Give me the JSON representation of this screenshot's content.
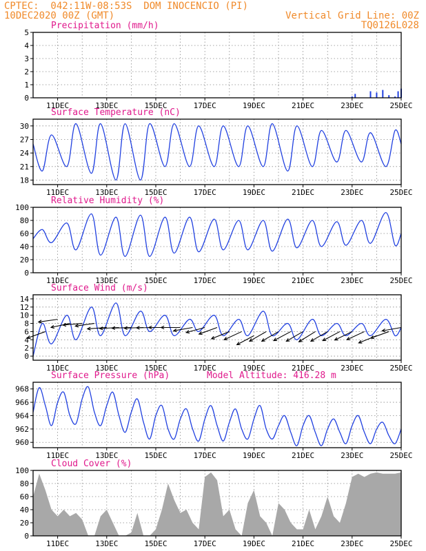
{
  "header": {
    "line1": "CPTEC:  042:11W-08:53S  DOM INOCENCIO (PI)",
    "line2": "10DEC2020 00Z (GMT)",
    "grid_note": "Vertical Grid Line: 00Z",
    "code": "TQ0126L028"
  },
  "colors": {
    "header": "#f08a2a",
    "panel_title": "#e0198c",
    "series": "#2040e0",
    "cloud_fill": "#a8a8a8",
    "grid": "#888888"
  },
  "x_axis": {
    "start": "10DEC2020 00Z",
    "end": "25DEC2020 00Z",
    "range_days": [
      10,
      25
    ],
    "tick_labels": [
      "11DEC",
      "13DEC",
      "15DEC",
      "17DEC",
      "19DEC",
      "21DEC",
      "23DEC",
      "25DEC"
    ],
    "tick_days": [
      11,
      13,
      15,
      17,
      19,
      21,
      23,
      25
    ]
  },
  "chart_data": [
    {
      "id": "precip",
      "type": "bar",
      "title": "Precipitation (mm/h)",
      "ylim": [
        0,
        5
      ],
      "yticks": [
        0,
        1,
        2,
        3,
        4,
        5
      ],
      "grid": true,
      "series": [
        {
          "x": [
            "10DEC 00Z",
            "11DEC 00Z",
            "12DEC 00Z",
            "13DEC 00Z",
            "14DEC 00Z",
            "15DEC 00Z",
            "16DEC 00Z",
            "17DEC 00Z",
            "18DEC 00Z",
            "19DEC 00Z",
            "20DEC 00Z",
            "21DEC 00Z",
            "22DEC 00Z",
            "23DEC 00Z",
            "23DEC 03Z",
            "23DEC 18Z",
            "24DEC 00Z",
            "24DEC 06Z",
            "24DEC 12Z",
            "24DEC 18Z",
            "24DEC 21Z",
            "25DEC 00Z"
          ],
          "values": [
            0.02,
            0.02,
            0.02,
            0.02,
            0.02,
            0.03,
            0.02,
            0.02,
            0.02,
            0.02,
            0.02,
            0.02,
            0.03,
            0.1,
            0.3,
            0.5,
            0.4,
            0.6,
            0.2,
            0.1,
            0.5,
            0.7
          ]
        }
      ]
    },
    {
      "id": "temp",
      "type": "line",
      "title": "Surface Temperature (nC)",
      "ylim": [
        17,
        31.5
      ],
      "yticks": [
        18,
        21,
        24,
        27,
        30
      ],
      "grid": true,
      "series": [
        {
          "x": [
            "10DEC 00Z",
            "10DEC 09Z",
            "10DEC 18Z",
            "11DEC 09Z",
            "11DEC 18Z",
            "12DEC 09Z",
            "12DEC 18Z",
            "13DEC 09Z",
            "13DEC 18Z",
            "14DEC 09Z",
            "14DEC 18Z",
            "15DEC 09Z",
            "15DEC 18Z",
            "16DEC 09Z",
            "16DEC 18Z",
            "17DEC 09Z",
            "17DEC 18Z",
            "18DEC 09Z",
            "18DEC 18Z",
            "19DEC 09Z",
            "19DEC 18Z",
            "20DEC 09Z",
            "20DEC 18Z",
            "21DEC 09Z",
            "21DEC 18Z",
            "22DEC 09Z",
            "22DEC 18Z",
            "23DEC 09Z",
            "23DEC 18Z",
            "24DEC 09Z",
            "24DEC 18Z",
            "25DEC 00Z"
          ],
          "values": [
            26,
            20,
            28,
            21,
            30.5,
            19.5,
            30.5,
            18,
            30.5,
            18,
            30.5,
            21,
            30.5,
            21,
            30,
            21,
            30,
            21,
            30,
            21,
            30.5,
            20,
            30,
            21,
            29,
            22,
            29,
            22,
            28.5,
            21,
            29,
            26
          ]
        }
      ]
    },
    {
      "id": "rh",
      "type": "line",
      "title": "Relative Humidity (%)",
      "ylim": [
        0,
        100
      ],
      "yticks": [
        0,
        20,
        40,
        60,
        80,
        100
      ],
      "grid": true,
      "series": [
        {
          "x": [
            "10DEC 00Z",
            "10DEC 09Z",
            "10DEC 18Z",
            "11DEC 09Z",
            "11DEC 18Z",
            "12DEC 09Z",
            "12DEC 18Z",
            "13DEC 09Z",
            "13DEC 18Z",
            "14DEC 09Z",
            "14DEC 18Z",
            "15DEC 09Z",
            "15DEC 18Z",
            "16DEC 09Z",
            "16DEC 18Z",
            "17DEC 09Z",
            "17DEC 18Z",
            "18DEC 09Z",
            "18DEC 18Z",
            "19DEC 09Z",
            "19DEC 18Z",
            "20DEC 09Z",
            "20DEC 18Z",
            "21DEC 09Z",
            "21DEC 18Z",
            "22DEC 09Z",
            "22DEC 18Z",
            "23DEC 09Z",
            "23DEC 18Z",
            "24DEC 09Z",
            "24DEC 18Z",
            "25DEC 00Z"
          ],
          "values": [
            52,
            66,
            46,
            76,
            35,
            90,
            27,
            85,
            25,
            88,
            25,
            85,
            30,
            85,
            32,
            82,
            35,
            80,
            35,
            80,
            33,
            82,
            38,
            80,
            40,
            78,
            42,
            80,
            45,
            92,
            42,
            60
          ]
        }
      ]
    },
    {
      "id": "wind",
      "type": "line",
      "title": "Surface Wind (m/s)",
      "ylim": [
        -1,
        15
      ],
      "yticks": [
        0,
        2,
        4,
        6,
        8,
        10,
        12,
        14
      ],
      "grid": true,
      "series": [
        {
          "x": [
            "10DEC 00Z",
            "10DEC 09Z",
            "10DEC 18Z",
            "11DEC 09Z",
            "11DEC 18Z",
            "12DEC 09Z",
            "12DEC 18Z",
            "13DEC 09Z",
            "13DEC 18Z",
            "14DEC 09Z",
            "14DEC 18Z",
            "15DEC 09Z",
            "15DEC 18Z",
            "16DEC 09Z",
            "16DEC 18Z",
            "17DEC 09Z",
            "17DEC 18Z",
            "18DEC 09Z",
            "18DEC 18Z",
            "19DEC 09Z",
            "19DEC 18Z",
            "20DEC 09Z",
            "20DEC 18Z",
            "21DEC 09Z",
            "21DEC 18Z",
            "22DEC 09Z",
            "22DEC 18Z",
            "23DEC 09Z",
            "23DEC 18Z",
            "24DEC 09Z",
            "24DEC 18Z",
            "25DEC 00Z"
          ],
          "values": [
            0,
            8,
            3,
            10,
            4,
            12,
            5,
            13,
            5,
            11,
            6,
            10,
            5,
            9,
            6,
            10,
            5,
            9,
            5,
            11,
            5,
            8,
            4,
            9,
            5,
            8,
            5,
            8,
            5,
            9,
            5,
            7
          ]
        }
      ],
      "wind_barbs": {
        "x": [
          "10DEC 12Z",
          "11DEC 00Z",
          "11DEC 12Z",
          "12DEC 00Z",
          "12DEC 12Z",
          "13DEC 00Z",
          "13DEC 12Z",
          "14DEC 00Z",
          "14DEC 12Z",
          "15DEC 00Z",
          "15DEC 12Z",
          "16DEC 00Z",
          "16DEC 12Z",
          "17DEC 00Z",
          "17DEC 12Z",
          "18DEC 00Z",
          "18DEC 12Z",
          "19DEC 00Z",
          "19DEC 12Z",
          "20DEC 00Z",
          "20DEC 12Z",
          "21DEC 00Z",
          "21DEC 12Z",
          "22DEC 00Z",
          "22DEC 12Z",
          "23DEC 00Z",
          "23DEC 12Z",
          "24DEC 00Z",
          "24DEC 12Z",
          "25DEC 00Z"
        ],
        "speed": [
          6,
          9,
          8,
          8,
          8,
          7,
          7,
          7,
          7,
          7,
          7,
          7,
          7,
          7,
          7,
          6,
          6,
          5,
          6,
          6,
          6,
          6,
          6,
          6,
          6,
          6,
          6,
          5,
          6,
          7
        ],
        "angle_deg": [
          -20,
          -8,
          -12,
          -5,
          -8,
          -4,
          -3,
          -2,
          -2,
          -1,
          0,
          0,
          -10,
          -15,
          -20,
          -22,
          -25,
          -28,
          -30,
          -30,
          -28,
          -30,
          -32,
          -30,
          -28,
          -26,
          -25,
          -22,
          -20,
          -10
        ]
      }
    },
    {
      "id": "pressure",
      "type": "line",
      "title": "Surface Pressure (hPa)",
      "annotation": "Model Altitude: 416.28 m",
      "ylim": [
        959.2,
        969
      ],
      "yticks": [
        960,
        962,
        964,
        966,
        968
      ],
      "grid": true,
      "series": [
        {
          "x": [
            "10DEC 00Z",
            "10DEC 06Z",
            "10DEC 12Z",
            "10DEC 18Z",
            "11DEC 00Z",
            "11DEC 06Z",
            "11DEC 12Z",
            "11DEC 18Z",
            "12DEC 00Z",
            "12DEC 06Z",
            "12DEC 12Z",
            "12DEC 18Z",
            "13DEC 00Z",
            "13DEC 06Z",
            "13DEC 12Z",
            "13DEC 18Z",
            "14DEC 00Z",
            "14DEC 06Z",
            "14DEC 12Z",
            "14DEC 18Z",
            "15DEC 00Z",
            "15DEC 06Z",
            "15DEC 12Z",
            "15DEC 18Z",
            "16DEC 00Z",
            "16DEC 06Z",
            "16DEC 12Z",
            "16DEC 18Z",
            "17DEC 00Z",
            "17DEC 06Z",
            "17DEC 12Z",
            "17DEC 18Z",
            "18DEC 00Z",
            "18DEC 06Z",
            "18DEC 12Z",
            "18DEC 18Z",
            "19DEC 00Z",
            "19DEC 06Z",
            "19DEC 12Z",
            "19DEC 18Z",
            "20DEC 00Z",
            "20DEC 06Z",
            "20DEC 12Z",
            "20DEC 18Z",
            "21DEC 00Z",
            "21DEC 06Z",
            "21DEC 12Z",
            "21DEC 18Z",
            "22DEC 00Z",
            "22DEC 06Z",
            "22DEC 12Z",
            "22DEC 18Z",
            "23DEC 00Z",
            "23DEC 06Z",
            "23DEC 12Z",
            "23DEC 18Z",
            "24DEC 00Z",
            "24DEC 06Z",
            "24DEC 12Z",
            "24DEC 18Z",
            "25DEC 00Z"
          ],
          "values": [
            964.5,
            968.2,
            965.5,
            962.5,
            966,
            967.5,
            964,
            962.8,
            966.5,
            968.3,
            964.5,
            962.5,
            965.5,
            967.5,
            964,
            961.5,
            964.5,
            966.5,
            963,
            960.5,
            964,
            965.5,
            962,
            960.5,
            963.5,
            965,
            962,
            960.2,
            963.5,
            965.5,
            962.5,
            960.2,
            963,
            965,
            962,
            960.5,
            963.5,
            965.5,
            962,
            960.5,
            962.5,
            964,
            961.5,
            959.5,
            962.5,
            964,
            961.5,
            959.5,
            962,
            963.5,
            961.5,
            959.8,
            962.5,
            964,
            961.5,
            959.8,
            962,
            963,
            961,
            959.8,
            962
          ]
        }
      ]
    },
    {
      "id": "cloud",
      "type": "area",
      "title": "Cloud Cover (%)",
      "ylim": [
        0,
        100
      ],
      "yticks": [
        0,
        20,
        40,
        60,
        80,
        100
      ],
      "grid": true,
      "series": [
        {
          "x": [
            "10DEC 00Z",
            "10DEC 06Z",
            "10DEC 12Z",
            "10DEC 18Z",
            "11DEC 00Z",
            "11DEC 06Z",
            "11DEC 12Z",
            "11DEC 18Z",
            "12DEC 00Z",
            "12DEC 06Z",
            "12DEC 12Z",
            "12DEC 18Z",
            "13DEC 00Z",
            "13DEC 06Z",
            "13DEC 12Z",
            "13DEC 18Z",
            "14DEC 00Z",
            "14DEC 06Z",
            "14DEC 12Z",
            "14DEC 18Z",
            "15DEC 00Z",
            "15DEC 06Z",
            "15DEC 12Z",
            "15DEC 18Z",
            "16DEC 00Z",
            "16DEC 06Z",
            "16DEC 12Z",
            "16DEC 18Z",
            "17DEC 00Z",
            "17DEC 06Z",
            "17DEC 12Z",
            "17DEC 18Z",
            "18DEC 00Z",
            "18DEC 06Z",
            "18DEC 12Z",
            "18DEC 18Z",
            "19DEC 00Z",
            "19DEC 06Z",
            "19DEC 12Z",
            "19DEC 18Z",
            "20DEC 00Z",
            "20DEC 06Z",
            "20DEC 12Z",
            "20DEC 18Z",
            "21DEC 00Z",
            "21DEC 06Z",
            "21DEC 12Z",
            "21DEC 18Z",
            "22DEC 00Z",
            "22DEC 06Z",
            "22DEC 12Z",
            "22DEC 18Z",
            "23DEC 00Z",
            "23DEC 06Z",
            "23DEC 12Z",
            "23DEC 18Z",
            "24DEC 00Z",
            "24DEC 06Z",
            "24DEC 12Z",
            "24DEC 18Z",
            "25DEC 00Z"
          ],
          "values": [
            60,
            95,
            70,
            40,
            30,
            40,
            30,
            35,
            25,
            0,
            0,
            30,
            40,
            20,
            0,
            0,
            5,
            35,
            0,
            0,
            10,
            40,
            80,
            55,
            35,
            40,
            20,
            10,
            90,
            97,
            85,
            30,
            40,
            10,
            0,
            50,
            70,
            30,
            20,
            0,
            50,
            40,
            20,
            10,
            10,
            40,
            10,
            30,
            60,
            30,
            20,
            50,
            90,
            95,
            90,
            95,
            97,
            95,
            95,
            95,
            97
          ]
        }
      ]
    }
  ]
}
